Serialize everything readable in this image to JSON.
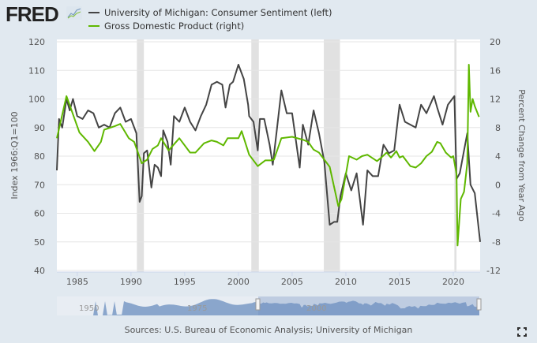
{
  "logo": {
    "text": "FRED"
  },
  "legend": [
    {
      "label": "University of Michigan: Consumer Sentiment (left)",
      "color": "#444444"
    },
    {
      "label": "Gross Domestic Product (right)",
      "color": "#5fb800"
    }
  ],
  "sources": "Sources: U.S. Bureau of Economic Analysis; University of Michigan",
  "navigator": {
    "labels": [
      "1950",
      "1975",
      "2000"
    ]
  },
  "icons": {
    "logo": "fred-chart-icon",
    "fullscreen": "fullscreen-icon"
  },
  "chart_data": {
    "type": "line",
    "xlim": [
      1983.1,
      2022.5
    ],
    "x_ticks": [
      "1985",
      "1990",
      "1995",
      "2000",
      "2005",
      "2010",
      "2015",
      "2020"
    ],
    "x_tick_values": [
      1985,
      1990,
      1995,
      2000,
      2005,
      2010,
      2015,
      2020
    ],
    "y_left": {
      "label": "Index 1966:Q1=100",
      "lim": [
        40,
        120
      ],
      "ticks": [
        "40",
        "50",
        "60",
        "70",
        "80",
        "90",
        "100",
        "110",
        "120"
      ]
    },
    "y_right": {
      "label": "Percent Change from Year Ago",
      "lim": [
        -12,
        20
      ],
      "ticks": [
        "-12",
        "-8",
        "-4",
        "0",
        "4",
        "8",
        "12",
        "16",
        "20"
      ]
    },
    "grid": true,
    "legend_position": "top",
    "recessions": [
      [
        1990.55,
        1991.2
      ],
      [
        2001.2,
        2001.9
      ],
      [
        2007.95,
        2009.45
      ],
      [
        2020.1,
        2020.3
      ]
    ],
    "recession_color": "#e1e1e1",
    "series": [
      {
        "name": "University of Michigan: Consumer Sentiment (left)",
        "axis": "left",
        "color": "#444444",
        "points": [
          [
            1983.1,
            75
          ],
          [
            1983.3,
            93
          ],
          [
            1983.6,
            90
          ],
          [
            1984.0,
            100
          ],
          [
            1984.3,
            96
          ],
          [
            1984.6,
            100
          ],
          [
            1985.0,
            94
          ],
          [
            1985.5,
            93
          ],
          [
            1986.0,
            96
          ],
          [
            1986.5,
            95
          ],
          [
            1987.0,
            90
          ],
          [
            1987.5,
            91
          ],
          [
            1988.0,
            90
          ],
          [
            1988.5,
            95
          ],
          [
            1989.0,
            97
          ],
          [
            1989.5,
            92
          ],
          [
            1990.0,
            93
          ],
          [
            1990.5,
            88
          ],
          [
            1990.8,
            64
          ],
          [
            1991.0,
            66
          ],
          [
            1991.2,
            81
          ],
          [
            1991.5,
            82
          ],
          [
            1991.9,
            69
          ],
          [
            1992.2,
            77
          ],
          [
            1992.5,
            76
          ],
          [
            1992.8,
            73
          ],
          [
            1993.0,
            89
          ],
          [
            1993.4,
            85
          ],
          [
            1993.7,
            77
          ],
          [
            1994.0,
            94
          ],
          [
            1994.5,
            92
          ],
          [
            1995.0,
            97
          ],
          [
            1995.5,
            92
          ],
          [
            1996.0,
            89
          ],
          [
            1996.5,
            94
          ],
          [
            1997.0,
            98
          ],
          [
            1997.5,
            105
          ],
          [
            1998.0,
            106
          ],
          [
            1998.5,
            105
          ],
          [
            1998.8,
            97
          ],
          [
            1999.2,
            105
          ],
          [
            1999.5,
            106
          ],
          [
            2000.0,
            112
          ],
          [
            2000.5,
            107
          ],
          [
            2000.9,
            98
          ],
          [
            2001.0,
            94
          ],
          [
            2001.4,
            92
          ],
          [
            2001.8,
            82
          ],
          [
            2002.0,
            93
          ],
          [
            2002.4,
            93
          ],
          [
            2002.9,
            84
          ],
          [
            2003.2,
            77
          ],
          [
            2003.6,
            90
          ],
          [
            2004.0,
            103
          ],
          [
            2004.5,
            95
          ],
          [
            2005.0,
            95
          ],
          [
            2005.7,
            76
          ],
          [
            2006.0,
            91
          ],
          [
            2006.5,
            84
          ],
          [
            2007.0,
            96
          ],
          [
            2007.5,
            88
          ],
          [
            2008.0,
            78
          ],
          [
            2008.5,
            56
          ],
          [
            2008.9,
            57
          ],
          [
            2009.2,
            57
          ],
          [
            2009.5,
            66
          ],
          [
            2010.0,
            74
          ],
          [
            2010.5,
            68
          ],
          [
            2011.0,
            74
          ],
          [
            2011.6,
            56
          ],
          [
            2012.0,
            75
          ],
          [
            2012.5,
            73
          ],
          [
            2013.0,
            73
          ],
          [
            2013.5,
            84
          ],
          [
            2014.0,
            81
          ],
          [
            2014.5,
            82
          ],
          [
            2015.0,
            98
          ],
          [
            2015.5,
            92
          ],
          [
            2016.0,
            91
          ],
          [
            2016.5,
            90
          ],
          [
            2017.0,
            98
          ],
          [
            2017.5,
            95
          ],
          [
            2018.2,
            101
          ],
          [
            2018.5,
            97
          ],
          [
            2019.0,
            91
          ],
          [
            2019.5,
            98
          ],
          [
            2020.1,
            101
          ],
          [
            2020.3,
            72
          ],
          [
            2020.6,
            74
          ],
          [
            2021.3,
            88
          ],
          [
            2021.6,
            70
          ],
          [
            2022.0,
            67
          ],
          [
            2022.5,
            50
          ]
        ]
      },
      {
        "name": "Gross Domestic Product (right)",
        "axis": "right",
        "color": "#5fb800",
        "points": [
          [
            1983.1,
            6.5
          ],
          [
            1984.0,
            12.4
          ],
          [
            1985.2,
            7.3
          ],
          [
            1986.0,
            6
          ],
          [
            1986.6,
            4.7
          ],
          [
            1987.2,
            6
          ],
          [
            1987.5,
            7.7
          ],
          [
            1988.5,
            8.2
          ],
          [
            1989.0,
            8.5
          ],
          [
            1989.8,
            6.5
          ],
          [
            1990.3,
            6
          ],
          [
            1991.0,
            3
          ],
          [
            1991.5,
            3.5
          ],
          [
            1992.0,
            5
          ],
          [
            1992.5,
            5.5
          ],
          [
            1992.8,
            6.5
          ],
          [
            1993.5,
            4.8
          ],
          [
            1994.5,
            6.5
          ],
          [
            1995.5,
            4.5
          ],
          [
            1996.0,
            4.5
          ],
          [
            1996.8,
            5.8
          ],
          [
            1997.5,
            6.2
          ],
          [
            1998.0,
            6
          ],
          [
            1998.6,
            5.5
          ],
          [
            1999.0,
            6.5
          ],
          [
            2000.0,
            6.5
          ],
          [
            2000.3,
            7.5
          ],
          [
            2001.0,
            4.2
          ],
          [
            2001.8,
            2.6
          ],
          [
            2002.5,
            3.4
          ],
          [
            2003.0,
            3.4
          ],
          [
            2003.3,
            3.5
          ],
          [
            2004.0,
            6.5
          ],
          [
            2005.0,
            6.7
          ],
          [
            2006.0,
            6.3
          ],
          [
            2006.5,
            6
          ],
          [
            2007.0,
            4.9
          ],
          [
            2007.5,
            4.5
          ],
          [
            2008.0,
            3.5
          ],
          [
            2008.5,
            2.5
          ],
          [
            2009.3,
            -3
          ],
          [
            2009.6,
            -2
          ],
          [
            2010.3,
            4
          ],
          [
            2011.0,
            3.5
          ],
          [
            2011.5,
            4
          ],
          [
            2012.0,
            4.2
          ],
          [
            2012.4,
            3.8
          ],
          [
            2012.9,
            3.3
          ],
          [
            2013.3,
            3.8
          ],
          [
            2013.8,
            4.5
          ],
          [
            2014.2,
            3.8
          ],
          [
            2014.7,
            4.7
          ],
          [
            2015.0,
            3.8
          ],
          [
            2015.3,
            4.0
          ],
          [
            2016.0,
            2.6
          ],
          [
            2016.5,
            2.4
          ],
          [
            2017.0,
            3.0
          ],
          [
            2017.5,
            4.0
          ],
          [
            2018.0,
            4.6
          ],
          [
            2018.5,
            6.0
          ],
          [
            2018.8,
            5.8
          ],
          [
            2019.3,
            4.5
          ],
          [
            2019.8,
            3.8
          ],
          [
            2020.0,
            4.0
          ],
          [
            2020.3,
            1.5
          ],
          [
            2020.4,
            -8.5
          ],
          [
            2020.7,
            -2.0
          ],
          [
            2021.0,
            -1.0
          ],
          [
            2021.3,
            3.0
          ],
          [
            2021.45,
            16.8
          ],
          [
            2021.6,
            10.2
          ],
          [
            2021.8,
            12
          ],
          [
            2022.0,
            11
          ],
          [
            2022.4,
            9.5
          ]
        ]
      }
    ]
  }
}
